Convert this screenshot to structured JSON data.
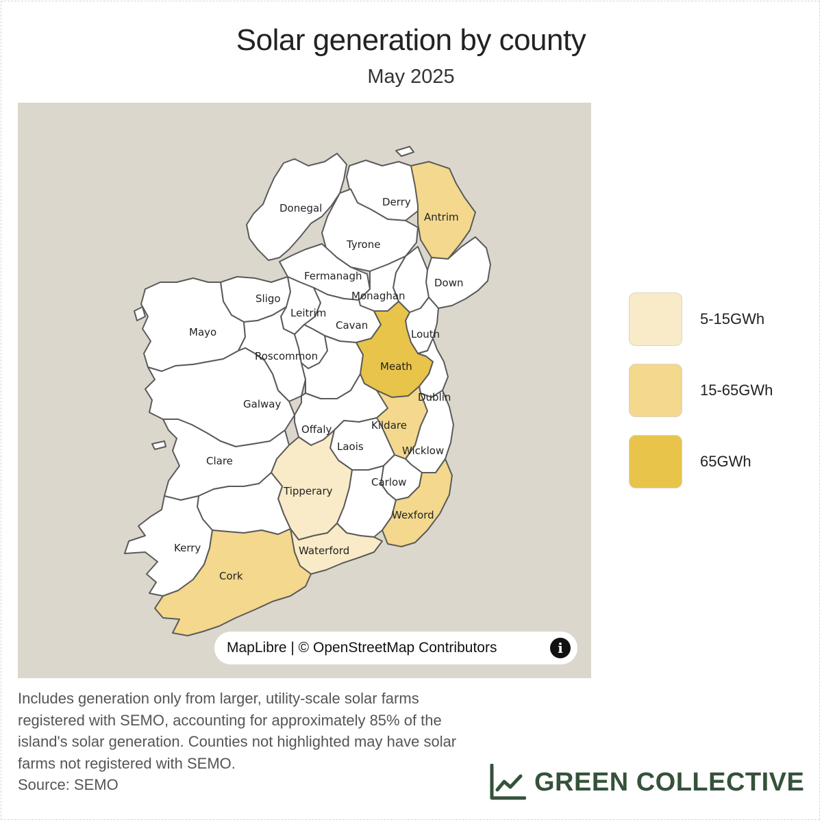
{
  "header": {
    "title": "Solar generation by county",
    "subtitle": "May 2025"
  },
  "colors": {
    "sea": "#dbd7cc",
    "no_data": "#ffffff",
    "low": "#f9ebc7",
    "mid": "#f3d88d",
    "high": "#e8c44a",
    "brand": "#35523a"
  },
  "legend": {
    "items": [
      {
        "label": "5-15GWh",
        "color": "#f9ebc7"
      },
      {
        "label": "15-65GWh",
        "color": "#f3d88d"
      },
      {
        "label": "65GWh",
        "color": "#e8c44a"
      }
    ]
  },
  "map": {
    "counties": {
      "donegal": {
        "label": "Donegal",
        "category": "none"
      },
      "derry": {
        "label": "Derry",
        "category": "none"
      },
      "antrim": {
        "label": "Antrim",
        "category": "mid"
      },
      "tyrone": {
        "label": "Tyrone",
        "category": "none"
      },
      "fermanagh": {
        "label": "Fermanagh",
        "category": "none"
      },
      "down": {
        "label": "Down",
        "category": "none"
      },
      "armagh": {
        "label": "",
        "category": "none"
      },
      "monaghan": {
        "label": "Monaghan",
        "category": "none"
      },
      "sligo": {
        "label": "Sligo",
        "category": "none"
      },
      "leitrim": {
        "label": "Leitrim",
        "category": "none"
      },
      "cavan": {
        "label": "Cavan",
        "category": "none"
      },
      "mayo": {
        "label": "Mayo",
        "category": "none"
      },
      "louth": {
        "label": "Louth",
        "category": "none"
      },
      "roscommon": {
        "label": "Roscommon",
        "category": "none"
      },
      "longford": {
        "label": "",
        "category": "none"
      },
      "westmeath": {
        "label": "",
        "category": "none"
      },
      "meath": {
        "label": "Meath",
        "category": "high"
      },
      "galway": {
        "label": "Galway",
        "category": "none"
      },
      "dublin": {
        "label": "Dublin",
        "category": "none"
      },
      "offaly": {
        "label": "Offaly",
        "category": "none"
      },
      "kildare": {
        "label": "Kildare",
        "category": "mid"
      },
      "laois": {
        "label": "Laois",
        "category": "none"
      },
      "wicklow": {
        "label": "Wicklow",
        "category": "none"
      },
      "clare": {
        "label": "Clare",
        "category": "none"
      },
      "carlow": {
        "label": "Carlow",
        "category": "none"
      },
      "tipperary": {
        "label": "Tipperary",
        "category": "low"
      },
      "kilkenny": {
        "label": "",
        "category": "none"
      },
      "wexford": {
        "label": "Wexford",
        "category": "mid"
      },
      "limerick": {
        "label": "",
        "category": "none"
      },
      "waterford": {
        "label": "Waterford",
        "category": "low"
      },
      "kerry": {
        "label": "Kerry",
        "category": "none"
      },
      "cork": {
        "label": "Cork",
        "category": "mid"
      }
    },
    "attribution": "MapLibre | © OpenStreetMap Contributors"
  },
  "footnote": {
    "text": "Includes generation only from larger, utility-scale solar farms registered with SEMO, accounting for approximately 85% of the island's solar generation. Counties not highlighted may have solar farms not registered with SEMO.",
    "source": "Source: SEMO"
  },
  "brand": {
    "name": "GREEN COLLECTIVE"
  }
}
